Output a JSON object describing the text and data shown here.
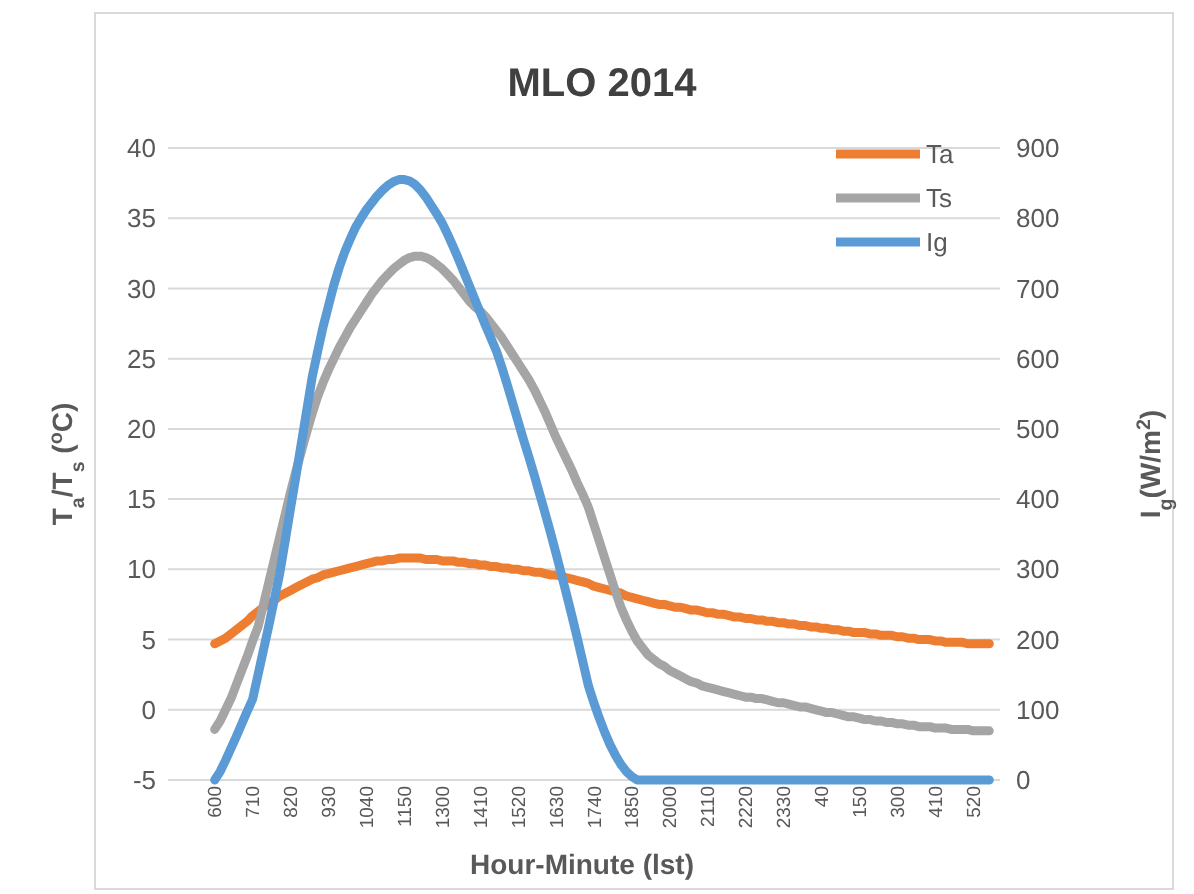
{
  "chart_data": {
    "type": "line",
    "title": "MLO 2014",
    "xlabel": "Hour-Minute (lst)",
    "ylabel": "T$_{a}$/T$_{s}$ ($^{o}$C)",
    "y2label": "I$_{g}$(W/m$^{2}$)",
    "categories": [
      "600",
      null,
      null,
      null,
      null,
      null,
      null,
      "710",
      null,
      null,
      null,
      null,
      null,
      null,
      "820",
      null,
      null,
      null,
      null,
      null,
      null,
      "930",
      null,
      null,
      null,
      null,
      null,
      null,
      "1040",
      null,
      null,
      null,
      null,
      null,
      null,
      "1150",
      null,
      null,
      null,
      null,
      null,
      null,
      "1300",
      null,
      null,
      null,
      null,
      null,
      null,
      "1410",
      null,
      null,
      null,
      null,
      null,
      null,
      "1520",
      null,
      null,
      null,
      null,
      null,
      null,
      "1630",
      null,
      null,
      null,
      null,
      null,
      null,
      "1740",
      null,
      null,
      null,
      null,
      null,
      null,
      "1850",
      null,
      null,
      null,
      null,
      null,
      null,
      "2000",
      null,
      null,
      null,
      null,
      null,
      null,
      "2110",
      null,
      null,
      null,
      null,
      null,
      null,
      "2220",
      null,
      null,
      null,
      null,
      null,
      null,
      "2330",
      null,
      null,
      null,
      null,
      null,
      null,
      "40",
      null,
      null,
      null,
      null,
      null,
      null,
      "150",
      null,
      null,
      null,
      null,
      null,
      null,
      "300",
      null,
      null,
      null,
      null,
      null,
      null,
      "410",
      null,
      null,
      null,
      null,
      null,
      null,
      "520",
      null,
      null,
      null
    ],
    "series": [
      {
        "name": "Ta",
        "color": "#ed7d31",
        "values": [
          4.7,
          4.9,
          5.1,
          5.4,
          5.7,
          6,
          6.3,
          6.7,
          7,
          7.3,
          7.6,
          7.8,
          8.1,
          8.3,
          8.5,
          8.7,
          8.9,
          9.1,
          9.3,
          9.4,
          9.6,
          9.7,
          9.8,
          9.9,
          10,
          10.1,
          10.2,
          10.3,
          10.4,
          10.5,
          10.6,
          10.6,
          10.7,
          10.7,
          10.8,
          10.8,
          10.8,
          10.8,
          10.8,
          10.7,
          10.7,
          10.7,
          10.6,
          10.6,
          10.6,
          10.5,
          10.5,
          10.4,
          10.4,
          10.3,
          10.3,
          10.2,
          10.2,
          10.1,
          10.1,
          10,
          10,
          9.9,
          9.9,
          9.8,
          9.8,
          9.7,
          9.6,
          9.6,
          9.5,
          9.4,
          9.3,
          9.2,
          9.1,
          9,
          8.8,
          8.7,
          8.6,
          8.5,
          8.4,
          8.3,
          8.1,
          8,
          7.9,
          7.8,
          7.7,
          7.6,
          7.5,
          7.5,
          7.4,
          7.3,
          7.3,
          7.2,
          7.1,
          7.1,
          7,
          6.9,
          6.9,
          6.8,
          6.8,
          6.7,
          6.6,
          6.6,
          6.5,
          6.5,
          6.4,
          6.4,
          6.3,
          6.3,
          6.2,
          6.2,
          6.1,
          6.1,
          6,
          6,
          5.9,
          5.9,
          5.8,
          5.8,
          5.7,
          5.7,
          5.6,
          5.6,
          5.5,
          5.5,
          5.5,
          5.4,
          5.4,
          5.3,
          5.3,
          5.3,
          5.2,
          5.2,
          5.1,
          5.1,
          5,
          5,
          5,
          4.9,
          4.9,
          4.8,
          4.8,
          4.8,
          4.8,
          4.7,
          4.7,
          4.7,
          4.7,
          4.7
        ]
      },
      {
        "name": "Ts",
        "color": "#a5a5a5",
        "values": [
          -1.4,
          -0.8,
          0,
          0.8,
          1.8,
          2.8,
          3.8,
          4.9,
          5.9,
          7.5,
          9.1,
          10.7,
          12.3,
          13.9,
          15.5,
          17,
          18.4,
          19.8,
          21.1,
          22.3,
          23.3,
          24.2,
          25,
          25.8,
          26.5,
          27.2,
          27.8,
          28.4,
          29,
          29.6,
          30.1,
          30.6,
          31,
          31.4,
          31.7,
          32,
          32.2,
          32.3,
          32.3,
          32.2,
          32,
          31.7,
          31.4,
          31,
          30.6,
          30.1,
          29.6,
          29.1,
          28.7,
          28.4,
          28,
          27.5,
          27,
          26.5,
          25.9,
          25.3,
          24.7,
          24.1,
          23.5,
          22.8,
          22,
          21.2,
          20.3,
          19.4,
          18.6,
          17.8,
          17,
          16.1,
          15.3,
          14.4,
          13.2,
          12,
          10.8,
          9.6,
          8.4,
          7.3,
          6.4,
          5.6,
          4.9,
          4.4,
          3.9,
          3.6,
          3.3,
          3.1,
          2.8,
          2.6,
          2.4,
          2.2,
          2,
          1.9,
          1.7,
          1.6,
          1.5,
          1.4,
          1.3,
          1.2,
          1.1,
          1,
          0.9,
          0.9,
          0.8,
          0.8,
          0.7,
          0.6,
          0.5,
          0.5,
          0.4,
          0.3,
          0.2,
          0.2,
          0.1,
          0,
          -0.1,
          -0.2,
          -0.2,
          -0.3,
          -0.4,
          -0.5,
          -0.5,
          -0.6,
          -0.7,
          -0.7,
          -0.8,
          -0.8,
          -0.9,
          -0.9,
          -1,
          -1,
          -1.1,
          -1.1,
          -1.2,
          -1.2,
          -1.2,
          -1.3,
          -1.3,
          -1.3,
          -1.4,
          -1.4,
          -1.4,
          -1.4,
          -1.5,
          -1.5,
          -1.5,
          -1.5
        ]
      },
      {
        "name": "Ig",
        "color": "#5b9bd5",
        "axis": "y2",
        "values": [
          0,
          12,
          28,
          45,
          62,
          80,
          98,
          115,
          150,
          185,
          220,
          257,
          294,
          340,
          387,
          433,
          480,
          527,
          574,
          610,
          645,
          675,
          705,
          730,
          752,
          770,
          787,
          800,
          812,
          822,
          832,
          840,
          847,
          852,
          855,
          855,
          853,
          848,
          840,
          830,
          818,
          806,
          793,
          777,
          760,
          742,
          723,
          704,
          685,
          666,
          647,
          629,
          611,
          588,
          563,
          537,
          511,
          485,
          460,
          434,
          407,
          380,
          352,
          323,
          293,
          263,
          232,
          200,
          167,
          134,
          110,
          88,
          68,
          50,
          35,
          22,
          12,
          5,
          0,
          0,
          0,
          0,
          0,
          0,
          0,
          0,
          0,
          0,
          0,
          0,
          0,
          0,
          0,
          0,
          0,
          0,
          0,
          0,
          0,
          0,
          0,
          0,
          0,
          0,
          0,
          0,
          0,
          0,
          0,
          0,
          0,
          0,
          0,
          0,
          0,
          0,
          0,
          0,
          0,
          0,
          0,
          0,
          0,
          0,
          0,
          0,
          0,
          0,
          0,
          0,
          0,
          0,
          0,
          0,
          0,
          0,
          0,
          0,
          0,
          0,
          0,
          0,
          0,
          0
        ]
      }
    ],
    "ylim": [
      -5,
      40
    ],
    "yticks": [
      -5,
      0,
      5,
      10,
      15,
      20,
      25,
      30,
      35,
      40
    ],
    "y2lim": [
      0,
      900
    ],
    "y2ticks": [
      0,
      100,
      200,
      300,
      400,
      500,
      600,
      700,
      800,
      900
    ],
    "grid": "y",
    "legend": "top right",
    "line_style": "solid"
  }
}
